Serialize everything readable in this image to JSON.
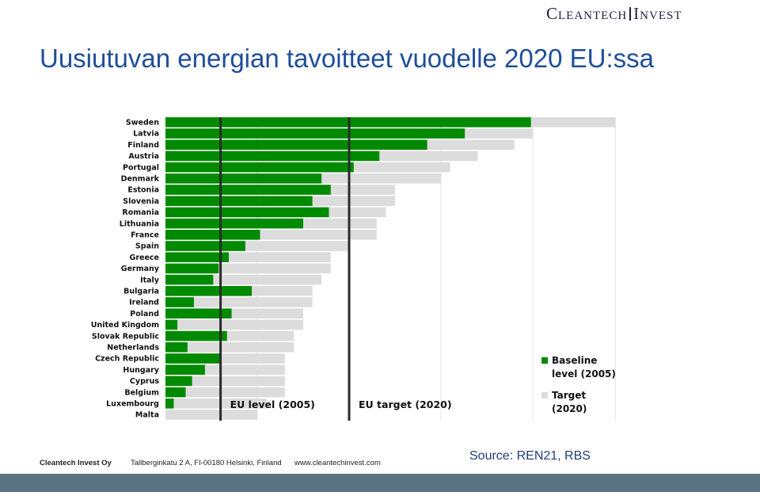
{
  "logo": {
    "left": "Cleantech",
    "right": "Invest"
  },
  "title": "Uusiutuvan energian tavoitteet vuodelle 2020 EU:ssa",
  "chart_data": {
    "type": "bar",
    "orientation": "horizontal",
    "categories": [
      "Sweden",
      "Latvia",
      "Finland",
      "Austria",
      "Portugal",
      "Denmark",
      "Estonia",
      "Slovenia",
      "Romania",
      "Lithuania",
      "France",
      "Spain",
      "Greece",
      "Germany",
      "Italy",
      "Bulgaria",
      "Ireland",
      "Poland",
      "United Kingdom",
      "Slovak Republic",
      "Netherlands",
      "Czech Republic",
      "Hungary",
      "Cyprus",
      "Belgium",
      "Luxembourg",
      "Malta"
    ],
    "series": [
      {
        "name": "Baseline level (2005)",
        "color": "#008a00",
        "values": [
          39.8,
          32.6,
          28.5,
          23.3,
          20.5,
          17.0,
          18.0,
          16.0,
          17.8,
          15.0,
          10.3,
          8.7,
          6.9,
          5.8,
          5.2,
          9.4,
          3.1,
          7.2,
          1.3,
          6.7,
          2.4,
          6.1,
          4.3,
          2.9,
          2.2,
          0.9,
          0.0
        ]
      },
      {
        "name": "Target (2020)",
        "color": "#dcdcdc",
        "values": [
          49,
          40,
          38,
          34,
          31,
          30,
          25,
          25,
          24,
          23,
          23,
          20,
          18,
          18,
          17,
          16,
          16,
          15,
          15,
          14,
          14,
          13,
          13,
          13,
          13,
          11,
          10
        ]
      }
    ],
    "reference_lines": [
      {
        "label": "EU level (2005)",
        "value": 6
      },
      {
        "label": "EU target (2020)",
        "value": 20
      }
    ],
    "xlim": [
      0,
      50
    ]
  },
  "legend": {
    "baseline": [
      "Baseline",
      "level (2005)"
    ],
    "target": [
      "Target",
      "(2020)"
    ]
  },
  "footer": {
    "company": "Cleantech Invest Oy",
    "address": "Tallberginkatu 2 A, FI-00180 Helsinki, Finland",
    "website": "www.cleantechinvest.com"
  },
  "source": "Source: REN21, RBS"
}
